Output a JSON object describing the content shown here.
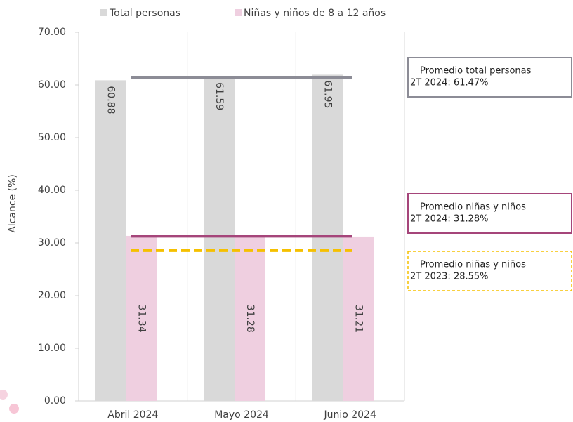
{
  "chart_data": {
    "type": "bar",
    "y_label": "Alcance (%)",
    "categories": [
      "Abril 2024",
      "Mayo 2024",
      "Junio 2024"
    ],
    "series": [
      {
        "name": "Total personas",
        "color": "#d9d9d9",
        "label_position": "inside_end",
        "values": [
          60.88,
          61.59,
          61.95
        ]
      },
      {
        "name": "Niñas y niños de 8 a 12 años",
        "color": "#efcfe0",
        "label_position": "center",
        "values": [
          31.34,
          31.28,
          31.21
        ]
      }
    ],
    "ylim": [
      0,
      70
    ],
    "yticks": [
      {
        "value": 0,
        "label": "0.00"
      },
      {
        "value": 10,
        "label": "10.00"
      },
      {
        "value": 20,
        "label": "20.00"
      },
      {
        "value": 30,
        "label": "30.00"
      },
      {
        "value": 40,
        "label": "40.00"
      },
      {
        "value": 50,
        "label": "50.00"
      },
      {
        "value": 60,
        "label": "60.00"
      },
      {
        "value": 70,
        "label": "70.00"
      }
    ],
    "reference_lines": [
      {
        "value": 61.47,
        "color": "#8c8c96",
        "dashed": false,
        "text": [
          "Promedio total personas",
          "2T 2024: 61.47%"
        ]
      },
      {
        "value": 31.28,
        "color": "#a5457a",
        "dashed": false,
        "text": [
          "Promedio niñas y niños",
          "2T 2024: 31.28%"
        ]
      },
      {
        "value": 28.55,
        "color": "#f5c000",
        "dashed": true,
        "text": [
          "Promedio niñas y niños",
          "2T 2023: 28.55%"
        ]
      }
    ]
  }
}
